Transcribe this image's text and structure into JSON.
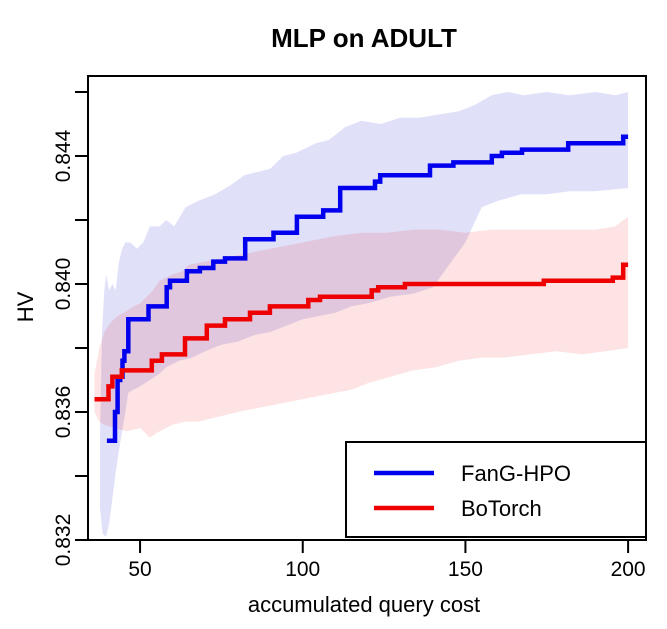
{
  "title": "MLP on ADULT",
  "chart_data": {
    "type": "line",
    "title": "MLP on ADULT",
    "xlabel": "accumulated query cost",
    "ylabel": "HV",
    "xlim": [
      34,
      205.5
    ],
    "ylim": [
      0.832,
      0.8465
    ],
    "grid": "off",
    "legend_position": "bottom-right",
    "axes": {
      "x_ticks": {
        "values": [
          50,
          100,
          150,
          200
        ],
        "labels": [
          "50",
          "100",
          "150",
          "200"
        ]
      },
      "y_ticks": {
        "values": [
          0.832,
          0.834,
          0.836,
          0.838,
          0.84,
          0.842,
          0.844,
          0.846
        ],
        "labels": [
          "0.832",
          "",
          "0.836",
          "",
          "0.840",
          "",
          "0.844",
          ""
        ]
      }
    },
    "series": [
      {
        "name": "FanG-HPO",
        "color": "#0000ee",
        "band_color": "#0000cc",
        "band_opacity": 0.12,
        "step_points": [
          [
            39.8,
            0.8351
          ],
          [
            42.3,
            0.836
          ],
          [
            43.1,
            0.837
          ],
          [
            43.9,
            0.8371
          ],
          [
            44.6,
            0.8376
          ],
          [
            45.2,
            0.8379
          ],
          [
            46.4,
            0.8389
          ],
          [
            52.6,
            0.8393
          ],
          [
            58.2,
            0.8399
          ],
          [
            59.2,
            0.8401
          ],
          [
            64.4,
            0.8404
          ],
          [
            68.4,
            0.8405
          ],
          [
            72.5,
            0.8407
          ],
          [
            76.1,
            0.8408
          ],
          [
            82.3,
            0.8414
          ],
          [
            91.0,
            0.8416
          ],
          [
            98.2,
            0.8421
          ],
          [
            106.3,
            0.8423
          ],
          [
            111.5,
            0.843
          ],
          [
            122.2,
            0.8432
          ],
          [
            123.8,
            0.8434
          ],
          [
            139.1,
            0.8437
          ],
          [
            146.3,
            0.8438
          ],
          [
            158.1,
            0.844
          ],
          [
            161.2,
            0.8441
          ],
          [
            167.4,
            0.8442
          ],
          [
            181.6,
            0.8444
          ],
          [
            198.5,
            0.8446
          ],
          [
            200,
            0.8446
          ]
        ],
        "band_upper": [
          [
            37.7,
            0.8352
          ],
          [
            38.3,
            0.8385
          ],
          [
            39.0,
            0.8398
          ],
          [
            39.6,
            0.8403
          ],
          [
            40.5,
            0.8398
          ],
          [
            41.5,
            0.84
          ],
          [
            42.5,
            0.8398
          ],
          [
            43.5,
            0.8407
          ],
          [
            44.5,
            0.8411
          ],
          [
            45.5,
            0.8413
          ],
          [
            47,
            0.8413
          ],
          [
            49,
            0.8411
          ],
          [
            51,
            0.8413
          ],
          [
            53,
            0.8418
          ],
          [
            56,
            0.8418
          ],
          [
            58,
            0.842
          ],
          [
            60.5,
            0.8418
          ],
          [
            64,
            0.8424
          ],
          [
            68,
            0.8426
          ],
          [
            73,
            0.8428
          ],
          [
            78,
            0.8431
          ],
          [
            82,
            0.8434
          ],
          [
            86,
            0.8435
          ],
          [
            90,
            0.8436
          ],
          [
            94,
            0.844
          ],
          [
            98,
            0.8441
          ],
          [
            104,
            0.8444
          ],
          [
            108,
            0.8445
          ],
          [
            113,
            0.8449
          ],
          [
            118,
            0.8451
          ],
          [
            124,
            0.845
          ],
          [
            130,
            0.8452
          ],
          [
            136,
            0.8452
          ],
          [
            142,
            0.8453
          ],
          [
            148,
            0.8454
          ],
          [
            153,
            0.8456
          ],
          [
            158,
            0.8459
          ],
          [
            163,
            0.846
          ],
          [
            168,
            0.8459
          ],
          [
            175,
            0.846
          ],
          [
            182,
            0.8459
          ],
          [
            190,
            0.846
          ],
          [
            196,
            0.8459
          ],
          [
            200,
            0.846
          ]
        ],
        "band_lower": [
          [
            37.7,
            0.833
          ],
          [
            38.5,
            0.8322
          ],
          [
            39.5,
            0.8321
          ],
          [
            40.5,
            0.8325
          ],
          [
            41.5,
            0.8333
          ],
          [
            42.5,
            0.8341
          ],
          [
            43.5,
            0.8348
          ],
          [
            44.5,
            0.8354
          ],
          [
            45.5,
            0.836
          ],
          [
            46.4,
            0.8366
          ],
          [
            48,
            0.8367
          ],
          [
            50,
            0.8368
          ],
          [
            53,
            0.837
          ],
          [
            56,
            0.8372
          ],
          [
            58,
            0.8374
          ],
          [
            62,
            0.8376
          ],
          [
            66,
            0.8377
          ],
          [
            70,
            0.8379
          ],
          [
            75,
            0.8381
          ],
          [
            80,
            0.8382
          ],
          [
            85,
            0.8384
          ],
          [
            90,
            0.8385
          ],
          [
            95,
            0.8387
          ],
          [
            100,
            0.8389
          ],
          [
            105,
            0.839
          ],
          [
            110,
            0.8391
          ],
          [
            115,
            0.8393
          ],
          [
            120,
            0.8394
          ],
          [
            127,
            0.8396
          ],
          [
            134,
            0.8397
          ],
          [
            140,
            0.8399
          ],
          [
            145,
            0.8406
          ],
          [
            150,
            0.8413
          ],
          [
            155,
            0.8424
          ],
          [
            160,
            0.8426
          ],
          [
            167,
            0.8428
          ],
          [
            175,
            0.8428
          ],
          [
            182,
            0.8429
          ],
          [
            190,
            0.8429
          ],
          [
            200,
            0.843
          ]
        ]
      },
      {
        "name": "BoTorch",
        "color": "#ee0000",
        "band_color": "#ee0000",
        "band_opacity": 0.11,
        "step_points": [
          [
            36.0,
            0.8364
          ],
          [
            40.3,
            0.8368
          ],
          [
            41.5,
            0.8371
          ],
          [
            44.4,
            0.8373
          ],
          [
            53.6,
            0.8376
          ],
          [
            56.7,
            0.8378
          ],
          [
            63.8,
            0.8383
          ],
          [
            70.5,
            0.8387
          ],
          [
            76.1,
            0.8389
          ],
          [
            83.8,
            0.8391
          ],
          [
            89.9,
            0.8393
          ],
          [
            101.7,
            0.8395
          ],
          [
            105.3,
            0.8396
          ],
          [
            121.2,
            0.8398
          ],
          [
            123.2,
            0.8399
          ],
          [
            131.4,
            0.84
          ],
          [
            174.1,
            0.8401
          ],
          [
            195.3,
            0.8402
          ],
          [
            198.5,
            0.8406
          ],
          [
            200,
            0.8406
          ]
        ],
        "band_upper": [
          [
            36.0,
            0.8372
          ],
          [
            37.5,
            0.838
          ],
          [
            39,
            0.8385
          ],
          [
            41,
            0.8388
          ],
          [
            43,
            0.839
          ],
          [
            45,
            0.8391
          ],
          [
            48,
            0.8393
          ],
          [
            50,
            0.8394
          ],
          [
            52,
            0.8396
          ],
          [
            54,
            0.8398
          ],
          [
            56,
            0.8401
          ],
          [
            58,
            0.8402
          ],
          [
            60,
            0.8403
          ],
          [
            63,
            0.8404
          ],
          [
            65,
            0.8406
          ],
          [
            70,
            0.8407
          ],
          [
            75,
            0.8408
          ],
          [
            80,
            0.8409
          ],
          [
            85,
            0.841
          ],
          [
            90,
            0.8411
          ],
          [
            95,
            0.8412
          ],
          [
            100,
            0.8413
          ],
          [
            105,
            0.8414
          ],
          [
            110,
            0.8415
          ],
          [
            118,
            0.8416
          ],
          [
            126,
            0.8416
          ],
          [
            134,
            0.8417
          ],
          [
            142,
            0.8417
          ],
          [
            150,
            0.8416
          ],
          [
            158,
            0.8417
          ],
          [
            166,
            0.8417
          ],
          [
            174,
            0.8417
          ],
          [
            182,
            0.8417
          ],
          [
            190,
            0.8417
          ],
          [
            196,
            0.8418
          ],
          [
            200,
            0.8421
          ]
        ],
        "band_lower": [
          [
            36.0,
            0.836
          ],
          [
            37.5,
            0.8357
          ],
          [
            39,
            0.8356
          ],
          [
            42,
            0.8355
          ],
          [
            46,
            0.8354
          ],
          [
            50,
            0.8355
          ],
          [
            53,
            0.8352
          ],
          [
            56,
            0.8354
          ],
          [
            60,
            0.8356
          ],
          [
            64,
            0.8357
          ],
          [
            68,
            0.8357
          ],
          [
            72,
            0.8358
          ],
          [
            76,
            0.8359
          ],
          [
            80,
            0.836
          ],
          [
            85,
            0.8361
          ],
          [
            90,
            0.8362
          ],
          [
            95,
            0.8363
          ],
          [
            100,
            0.8364
          ],
          [
            105,
            0.8365
          ],
          [
            110,
            0.8366
          ],
          [
            115,
            0.8367
          ],
          [
            120,
            0.8369
          ],
          [
            127,
            0.8371
          ],
          [
            134,
            0.8373
          ],
          [
            141,
            0.8374
          ],
          [
            148,
            0.8376
          ],
          [
            155,
            0.8377
          ],
          [
            162,
            0.8377
          ],
          [
            170,
            0.8378
          ],
          [
            178,
            0.8379
          ],
          [
            186,
            0.8378
          ],
          [
            193,
            0.8379
          ],
          [
            200,
            0.838
          ]
        ]
      }
    ]
  },
  "colors": {
    "frame": "#000000",
    "background": "#ffffff",
    "blue_line": "#0000ee",
    "red_line": "#ee0000"
  }
}
